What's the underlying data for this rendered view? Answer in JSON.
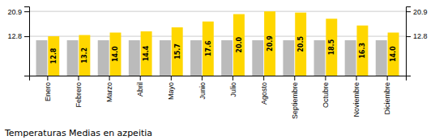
{
  "chart_data": {
    "type": "bar",
    "title": "Temperaturas Medias en azpeitia",
    "categories": [
      "Enero",
      "Febrero",
      "Marzo",
      "Abril",
      "Mayo",
      "Junio",
      "Julio",
      "Agosto",
      "Septiembre",
      "Octubre",
      "Noviembre",
      "Diciembre"
    ],
    "series": [
      {
        "color": "#BBBBBB",
        "values": [
          11.5,
          11.5,
          11.5,
          11.5,
          11.5,
          11.5,
          11.5,
          11.5,
          11.5,
          11.5,
          11.5,
          11.5
        ]
      },
      {
        "color": "#FFD700",
        "values": [
          12.8,
          13.2,
          14.0,
          14.4,
          15.7,
          17.6,
          20.0,
          20.9,
          20.5,
          18.5,
          16.3,
          14.0
        ],
        "value_labels": [
          "12.8",
          "13.2",
          "14.0",
          "14.4",
          "15.7",
          "17.6",
          "20.0",
          "20.9",
          "20.5",
          "18.5",
          "16.3",
          "14.0"
        ],
        "data_labels": true
      }
    ],
    "ylim": [
      0.0,
      22.5
    ],
    "yticks": [
      12.8,
      20.9
    ],
    "y2lim": [
      0.0,
      22.5
    ],
    "y2ticks": [
      12.8,
      20.9
    ],
    "grid": true
  }
}
